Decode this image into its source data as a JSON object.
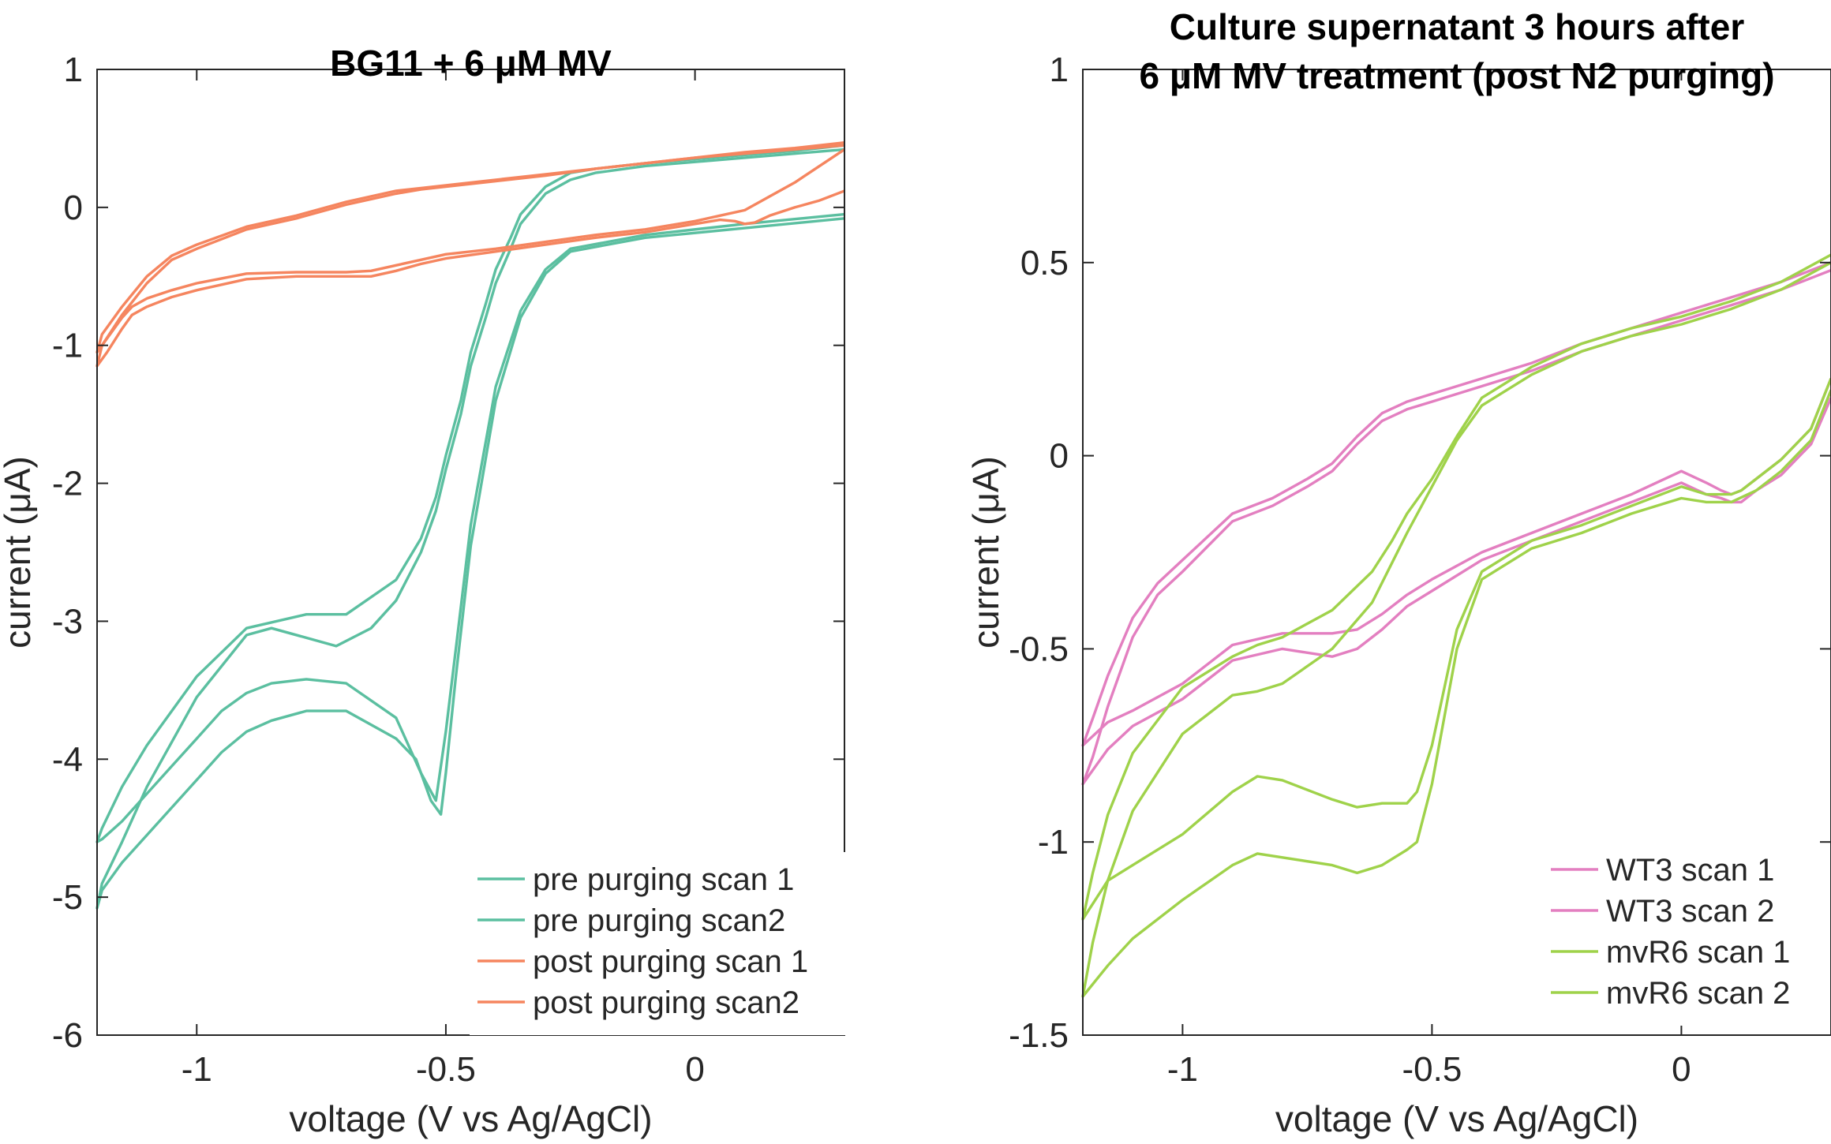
{
  "chart_data": [
    {
      "type": "line",
      "title": [
        "BG11 + 6 μM MV"
      ],
      "xlabel": "voltage (V vs Ag/AgCl)",
      "ylabel": "current (μA)",
      "xlim": [
        -1.2,
        0.3
      ],
      "ylim": [
        -6,
        1
      ],
      "xticks": [
        -1,
        -0.5,
        0
      ],
      "xtick_labels": [
        "-1",
        "-0.5",
        "0"
      ],
      "yticks": [
        -6,
        -5,
        -4,
        -3,
        -2,
        -1,
        0,
        1
      ],
      "ytick_labels": [
        "-6",
        "-5",
        "-4",
        "-3",
        "-2",
        "-1",
        "0",
        "1"
      ],
      "grid": false,
      "legend_position": "bottom-right",
      "series": [
        {
          "name": "pre purging scan 1",
          "color": "#5bbfa0",
          "x": [
            0.3,
            0.1,
            -0.1,
            -0.25,
            -0.3,
            -0.35,
            -0.4,
            -0.45,
            -0.48,
            -0.5,
            -0.52,
            -0.55,
            -0.6,
            -0.7,
            -0.78,
            -0.85,
            -0.9,
            -0.95,
            -1.0,
            -1.05,
            -1.1,
            -1.15,
            -1.19,
            -1.2,
            -1.19,
            -1.15,
            -1.1,
            -1.0,
            -0.9,
            -0.78,
            -0.7,
            -0.6,
            -0.55,
            -0.52,
            -0.5,
            -0.47,
            -0.45,
            -0.42,
            -0.4,
            -0.37,
            -0.35,
            -0.3,
            -0.25,
            -0.2,
            -0.1,
            0.0,
            0.1,
            0.2,
            0.3
          ],
          "y": [
            -0.05,
            -0.12,
            -0.2,
            -0.3,
            -0.45,
            -0.75,
            -1.3,
            -2.3,
            -3.2,
            -3.8,
            -4.3,
            -4.1,
            -3.7,
            -3.45,
            -3.42,
            -3.45,
            -3.52,
            -3.65,
            -3.85,
            -4.05,
            -4.25,
            -4.45,
            -4.58,
            -4.6,
            -4.5,
            -4.2,
            -3.9,
            -3.4,
            -3.05,
            -2.95,
            -2.95,
            -2.7,
            -2.4,
            -2.1,
            -1.8,
            -1.4,
            -1.05,
            -0.7,
            -0.45,
            -0.22,
            -0.05,
            0.15,
            0.25,
            0.28,
            0.32,
            0.35,
            0.38,
            0.41,
            0.45
          ]
        },
        {
          "name": "pre purging scan2",
          "color": "#5bbfa0",
          "x": [
            0.3,
            0.1,
            -0.1,
            -0.25,
            -0.3,
            -0.35,
            -0.4,
            -0.45,
            -0.48,
            -0.5,
            -0.51,
            -0.53,
            -0.56,
            -0.6,
            -0.7,
            -0.78,
            -0.85,
            -0.9,
            -0.95,
            -1.0,
            -1.05,
            -1.1,
            -1.15,
            -1.19,
            -1.2,
            -1.19,
            -1.15,
            -1.1,
            -1.0,
            -0.9,
            -0.85,
            -0.78,
            -0.72,
            -0.65,
            -0.6,
            -0.55,
            -0.52,
            -0.5,
            -0.47,
            -0.45,
            -0.42,
            -0.4,
            -0.37,
            -0.35,
            -0.3,
            -0.25,
            -0.2,
            -0.1,
            0.0,
            0.1,
            0.2,
            0.3
          ],
          "y": [
            -0.08,
            -0.15,
            -0.22,
            -0.32,
            -0.48,
            -0.8,
            -1.4,
            -2.45,
            -3.4,
            -4.1,
            -4.4,
            -4.3,
            -4.0,
            -3.85,
            -3.65,
            -3.65,
            -3.72,
            -3.8,
            -3.95,
            -4.15,
            -4.35,
            -4.55,
            -4.75,
            -4.95,
            -5.08,
            -4.9,
            -4.6,
            -4.2,
            -3.55,
            -3.1,
            -3.05,
            -3.12,
            -3.18,
            -3.05,
            -2.85,
            -2.5,
            -2.2,
            -1.9,
            -1.5,
            -1.15,
            -0.8,
            -0.55,
            -0.3,
            -0.12,
            0.1,
            0.2,
            0.25,
            0.3,
            0.33,
            0.36,
            0.39,
            0.42
          ]
        },
        {
          "name": "post purging scan 1",
          "color": "#f5855f",
          "x": [
            0.3,
            0.25,
            0.2,
            0.15,
            0.1,
            0.05,
            0.0,
            -0.1,
            -0.2,
            -0.3,
            -0.4,
            -0.5,
            -0.55,
            -0.6,
            -0.65,
            -0.7,
            -0.8,
            -0.9,
            -1.0,
            -1.05,
            -1.1,
            -1.13,
            -1.15,
            -1.18,
            -1.2,
            -1.19,
            -1.15,
            -1.1,
            -1.05,
            -1.0,
            -0.9,
            -0.8,
            -0.7,
            -0.6,
            -0.55,
            -0.5,
            -0.4,
            -0.3,
            -0.2,
            -0.1,
            0.0,
            0.1,
            0.2,
            0.3
          ],
          "y": [
            0.42,
            0.3,
            0.18,
            0.08,
            -0.02,
            -0.06,
            -0.1,
            -0.16,
            -0.2,
            -0.25,
            -0.3,
            -0.34,
            -0.38,
            -0.42,
            -0.46,
            -0.47,
            -0.47,
            -0.48,
            -0.55,
            -0.6,
            -0.66,
            -0.72,
            -0.8,
            -0.95,
            -1.05,
            -0.92,
            -0.72,
            -0.5,
            -0.35,
            -0.27,
            -0.14,
            -0.06,
            0.04,
            0.12,
            0.14,
            0.16,
            0.2,
            0.24,
            0.28,
            0.32,
            0.36,
            0.39,
            0.42,
            0.45
          ]
        },
        {
          "name": "post purging scan2",
          "color": "#f5855f",
          "x": [
            0.3,
            0.25,
            0.2,
            0.15,
            0.12,
            0.1,
            0.08,
            0.05,
            0.0,
            -0.1,
            -0.2,
            -0.3,
            -0.4,
            -0.5,
            -0.55,
            -0.6,
            -0.65,
            -0.7,
            -0.8,
            -0.9,
            -1.0,
            -1.05,
            -1.1,
            -1.13,
            -1.15,
            -1.18,
            -1.2,
            -1.19,
            -1.15,
            -1.1,
            -1.05,
            -1.0,
            -0.9,
            -0.8,
            -0.7,
            -0.6,
            -0.55,
            -0.5,
            -0.4,
            -0.3,
            -0.2,
            -0.1,
            0.0,
            0.1,
            0.2,
            0.3
          ],
          "y": [
            0.12,
            0.05,
            0.0,
            -0.06,
            -0.11,
            -0.12,
            -0.1,
            -0.09,
            -0.12,
            -0.18,
            -0.22,
            -0.27,
            -0.32,
            -0.37,
            -0.41,
            -0.46,
            -0.5,
            -0.5,
            -0.5,
            -0.52,
            -0.6,
            -0.65,
            -0.72,
            -0.78,
            -0.88,
            -1.05,
            -1.15,
            -1.0,
            -0.78,
            -0.55,
            -0.38,
            -0.3,
            -0.16,
            -0.08,
            0.02,
            0.1,
            0.13,
            0.15,
            0.19,
            0.23,
            0.28,
            0.32,
            0.36,
            0.4,
            0.43,
            0.47
          ]
        }
      ]
    },
    {
      "type": "line",
      "title": [
        "Culture supernatant 3 hours after",
        "6 μM MV treatment (post N2 purging)"
      ],
      "xlabel": "voltage (V vs Ag/AgCl)",
      "ylabel": "current (μA)",
      "xlim": [
        -1.2,
        0.3
      ],
      "ylim": [
        -1.5,
        1
      ],
      "xticks": [
        -1,
        -0.5,
        0
      ],
      "xtick_labels": [
        "-1",
        "-0.5",
        "0"
      ],
      "yticks": [
        -1.5,
        -1,
        -0.5,
        0,
        0.5,
        1
      ],
      "ytick_labels": [
        "-1.5",
        "-1",
        "-0.5",
        "0",
        "0.5",
        "1"
      ],
      "grid": false,
      "legend_position": "bottom-right",
      "series": [
        {
          "name": "WT3 scan 1",
          "color": "#e37fc0",
          "x": [
            0.3,
            0.26,
            0.2,
            0.15,
            0.12,
            0.1,
            0.08,
            0.05,
            0.0,
            -0.1,
            -0.2,
            -0.3,
            -0.4,
            -0.5,
            -0.55,
            -0.6,
            -0.65,
            -0.7,
            -0.8,
            -0.9,
            -1.0,
            -1.1,
            -1.15,
            -1.2,
            -1.18,
            -1.15,
            -1.1,
            -1.05,
            -1.0,
            -0.9,
            -0.82,
            -0.75,
            -0.7,
            -0.65,
            -0.6,
            -0.55,
            -0.5,
            -0.4,
            -0.3,
            -0.2,
            -0.1,
            0.0,
            0.1,
            0.2,
            0.3
          ],
          "y": [
            0.2,
            0.07,
            -0.01,
            -0.06,
            -0.09,
            -0.1,
            -0.09,
            -0.07,
            -0.04,
            -0.1,
            -0.15,
            -0.2,
            -0.25,
            -0.32,
            -0.36,
            -0.41,
            -0.45,
            -0.46,
            -0.46,
            -0.49,
            -0.59,
            -0.66,
            -0.69,
            -0.75,
            -0.68,
            -0.57,
            -0.42,
            -0.33,
            -0.27,
            -0.15,
            -0.11,
            -0.06,
            -0.02,
            0.05,
            0.11,
            0.14,
            0.16,
            0.2,
            0.24,
            0.29,
            0.33,
            0.37,
            0.41,
            0.45,
            0.5
          ]
        },
        {
          "name": "WT3 scan 2",
          "color": "#e37fc0",
          "x": [
            0.3,
            0.26,
            0.2,
            0.15,
            0.12,
            0.1,
            0.08,
            0.05,
            0.0,
            -0.1,
            -0.2,
            -0.3,
            -0.4,
            -0.5,
            -0.55,
            -0.6,
            -0.65,
            -0.7,
            -0.8,
            -0.9,
            -1.0,
            -1.1,
            -1.15,
            -1.2,
            -1.18,
            -1.15,
            -1.1,
            -1.05,
            -1.0,
            -0.9,
            -0.82,
            -0.75,
            -0.7,
            -0.65,
            -0.6,
            -0.55,
            -0.5,
            -0.4,
            -0.3,
            -0.2,
            -0.1,
            0.0,
            0.1,
            0.2,
            0.3
          ],
          "y": [
            0.15,
            0.03,
            -0.05,
            -0.09,
            -0.12,
            -0.12,
            -0.11,
            -0.1,
            -0.07,
            -0.12,
            -0.17,
            -0.22,
            -0.27,
            -0.35,
            -0.39,
            -0.45,
            -0.5,
            -0.52,
            -0.5,
            -0.53,
            -0.63,
            -0.7,
            -0.76,
            -0.85,
            -0.78,
            -0.65,
            -0.47,
            -0.36,
            -0.3,
            -0.17,
            -0.13,
            -0.08,
            -0.04,
            0.03,
            0.09,
            0.12,
            0.14,
            0.18,
            0.22,
            0.27,
            0.31,
            0.35,
            0.39,
            0.43,
            0.48
          ]
        },
        {
          "name": "mvR6 scan 1",
          "color": "#9fd24a",
          "x": [
            0.3,
            0.26,
            0.2,
            0.15,
            0.12,
            0.1,
            0.05,
            0.0,
            -0.1,
            -0.2,
            -0.3,
            -0.4,
            -0.45,
            -0.5,
            -0.53,
            -0.55,
            -0.6,
            -0.65,
            -0.7,
            -0.8,
            -0.85,
            -0.9,
            -1.0,
            -1.1,
            -1.15,
            -1.2,
            -1.18,
            -1.15,
            -1.1,
            -1.0,
            -0.9,
            -0.85,
            -0.8,
            -0.7,
            -0.62,
            -0.58,
            -0.55,
            -0.5,
            -0.45,
            -0.4,
            -0.3,
            -0.2,
            -0.1,
            0.0,
            0.1,
            0.2,
            0.3
          ],
          "y": [
            0.2,
            0.07,
            -0.01,
            -0.06,
            -0.09,
            -0.1,
            -0.1,
            -0.08,
            -0.13,
            -0.18,
            -0.22,
            -0.3,
            -0.45,
            -0.75,
            -0.87,
            -0.9,
            -0.9,
            -0.91,
            -0.89,
            -0.84,
            -0.83,
            -0.87,
            -0.98,
            -1.06,
            -1.1,
            -1.2,
            -1.08,
            -0.93,
            -0.77,
            -0.6,
            -0.52,
            -0.49,
            -0.47,
            -0.4,
            -0.3,
            -0.22,
            -0.15,
            -0.06,
            0.05,
            0.15,
            0.23,
            0.29,
            0.33,
            0.36,
            0.4,
            0.45,
            0.52
          ]
        },
        {
          "name": "mvR6 scan 2",
          "color": "#9fd24a",
          "x": [
            0.3,
            0.26,
            0.2,
            0.15,
            0.1,
            0.05,
            0.0,
            -0.1,
            -0.2,
            -0.3,
            -0.4,
            -0.45,
            -0.5,
            -0.53,
            -0.55,
            -0.6,
            -0.65,
            -0.7,
            -0.8,
            -0.85,
            -0.9,
            -1.0,
            -1.1,
            -1.15,
            -1.2,
            -1.18,
            -1.15,
            -1.1,
            -1.0,
            -0.9,
            -0.85,
            -0.8,
            -0.7,
            -0.62,
            -0.55,
            -0.5,
            -0.45,
            -0.4,
            -0.3,
            -0.2,
            -0.1,
            0.0,
            0.1,
            0.2,
            0.3
          ],
          "y": [
            0.17,
            0.04,
            -0.04,
            -0.09,
            -0.12,
            -0.12,
            -0.11,
            -0.15,
            -0.2,
            -0.24,
            -0.32,
            -0.5,
            -0.85,
            -1.0,
            -1.02,
            -1.06,
            -1.08,
            -1.06,
            -1.04,
            -1.03,
            -1.06,
            -1.15,
            -1.25,
            -1.32,
            -1.4,
            -1.26,
            -1.1,
            -0.92,
            -0.72,
            -0.62,
            -0.61,
            -0.59,
            -0.5,
            -0.38,
            -0.2,
            -0.08,
            0.04,
            0.13,
            0.21,
            0.27,
            0.31,
            0.34,
            0.38,
            0.43,
            0.5
          ]
        }
      ]
    }
  ]
}
